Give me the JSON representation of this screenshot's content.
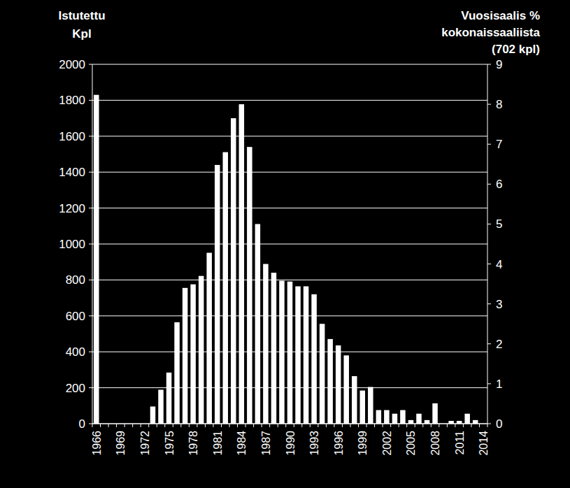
{
  "chart_data": {
    "type": "bar",
    "ylabel": [
      "Istutettu",
      "Kpl"
    ],
    "y2label": [
      "Vuosisaalis %",
      "kokonaissaaliista",
      "(702 kpl)"
    ],
    "categories": [
      "1966",
      null,
      null,
      "1969",
      null,
      null,
      "1972",
      null,
      null,
      "1975",
      null,
      null,
      "1978",
      null,
      null,
      "1981",
      null,
      null,
      "1984",
      null,
      null,
      "1987",
      null,
      null,
      "1990",
      null,
      null,
      "1993",
      null,
      null,
      "1996",
      null,
      null,
      "1999",
      null,
      null,
      "2002",
      null,
      null,
      "2005",
      null,
      null,
      "2008",
      null,
      null,
      "2011",
      null,
      null,
      "2014"
    ],
    "series": [
      {
        "color": "#ffffff",
        "values": [
          1830,
          null,
          null,
          null,
          null,
          null,
          null,
          null,
          null,
          null,
          null,
          null,
          null,
          null,
          null,
          null,
          null,
          null,
          null,
          null,
          null,
          null,
          null,
          null,
          null,
          null,
          null,
          null,
          null,
          null,
          null,
          null,
          null,
          null,
          null,
          null,
          null,
          null,
          null,
          null,
          null,
          null,
          null,
          null,
          null,
          null,
          null,
          null,
          null
        ]
      },
      {
        "color": "#ffffff",
        "axis": "y2",
        "values": [
          null,
          0,
          0,
          0,
          0,
          0,
          0,
          0.43,
          0.85,
          1.28,
          2.54,
          3.4,
          3.49,
          3.7,
          4.28,
          6.48,
          6.8,
          7.65,
          8.0,
          6.93,
          5.0,
          4.0,
          3.78,
          3.58,
          3.56,
          3.44,
          3.44,
          3.24,
          2.5,
          2.12,
          1.96,
          1.71,
          1.19,
          0.83,
          0.92,
          0.34,
          0.34,
          0.25,
          0.34,
          0.09,
          0.25,
          0.09,
          0.51,
          0,
          0.07,
          0.07,
          0.25,
          0.09,
          0
        ]
      }
    ],
    "ylim": [
      0,
      2000
    ],
    "yticks": [
      0,
      200,
      400,
      600,
      800,
      1000,
      1200,
      1400,
      1600,
      1800,
      2000
    ],
    "y2lim": [
      0,
      9
    ],
    "y2ticks": [
      0,
      1,
      2,
      3,
      4,
      5,
      6,
      7,
      8,
      9
    ],
    "grid": true
  }
}
